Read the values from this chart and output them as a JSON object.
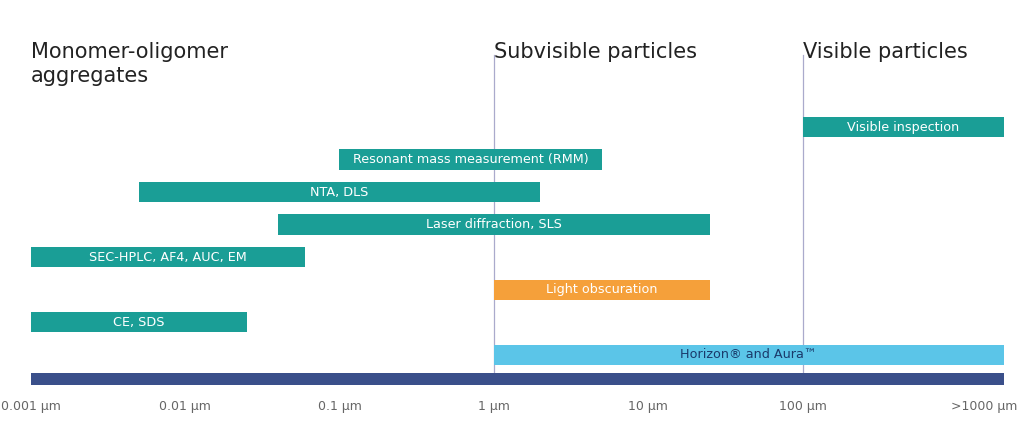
{
  "title_regions": [
    {
      "label": "Monomer-oligomer\naggregates",
      "x_data": 0.001
    },
    {
      "label": "Subvisible particles",
      "x_data": 1.0
    },
    {
      "label": "Visible particles",
      "x_data": 100.0
    }
  ],
  "dividers": [
    1.0,
    100.0
  ],
  "bars": [
    {
      "label": "Visible inspection",
      "xmin": 100,
      "xmax": 2000,
      "color": "#1a9e96",
      "text_color": "#ffffff",
      "y": 6
    },
    {
      "label": "Resonant mass measurement (RMM)",
      "xmin": 0.1,
      "xmax": 5,
      "color": "#1a9e96",
      "text_color": "#ffffff",
      "y": 5
    },
    {
      "label": "NTA, DLS",
      "xmin": 0.005,
      "xmax": 2,
      "color": "#1a9e96",
      "text_color": "#ffffff",
      "y": 4
    },
    {
      "label": "Laser diffraction, SLS",
      "xmin": 0.04,
      "xmax": 25,
      "color": "#1a9e96",
      "text_color": "#ffffff",
      "y": 3
    },
    {
      "label": "SEC-HPLC, AF4, AUC, EM",
      "xmin": 0.001,
      "xmax": 0.06,
      "color": "#1a9e96",
      "text_color": "#ffffff",
      "y": 2
    },
    {
      "label": "Light obscuration",
      "xmin": 1.0,
      "xmax": 25,
      "color": "#f5a03a",
      "text_color": "#ffffff",
      "y": 1
    },
    {
      "label": "CE, SDS",
      "xmin": 0.001,
      "xmax": 0.025,
      "color": "#1a9e96",
      "text_color": "#ffffff",
      "y": 0
    },
    {
      "label": "Horizon® and Aura™",
      "xmin": 1.0,
      "xmax": 2000,
      "color": "#5bc5e8",
      "text_color": "#1a3a6b",
      "y": -1
    }
  ],
  "axis_bar_color": "#3a4f8a",
  "tick_labels": [
    "0.001 μm",
    "0.01 μm",
    "0.1 μm",
    "1 μm",
    "10 μm",
    "100 μm",
    ">1000 μm"
  ],
  "tick_values": [
    0.001,
    0.01,
    0.1,
    1.0,
    10.0,
    100.0,
    1500.0
  ],
  "xmin": 0.001,
  "xmax": 2000,
  "bar_height": 0.62,
  "axis_bar_height": 0.35,
  "background_color": "#ffffff",
  "font_color": "#666666",
  "title_fontsize": 15,
  "label_fontsize": 9.2,
  "tick_fontsize": 9,
  "divider_color": "#aaaacc",
  "divider_lw": 0.9
}
